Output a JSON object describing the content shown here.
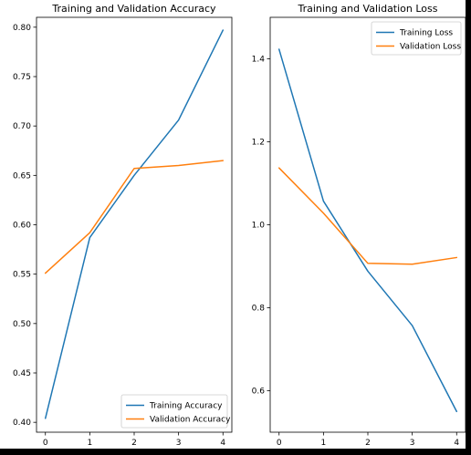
{
  "chart_data": [
    {
      "type": "line",
      "title": "Training and Validation Accuracy",
      "xlabel": "",
      "ylabel": "",
      "x": [
        0,
        1,
        2,
        3,
        4
      ],
      "xlim": [
        -0.2,
        4.2
      ],
      "ylim": [
        0.39,
        0.81
      ],
      "xticks": [
        "0",
        "1",
        "2",
        "3",
        "4"
      ],
      "yticks": [
        "0.40",
        "0.45",
        "0.50",
        "0.55",
        "0.60",
        "0.65",
        "0.70",
        "0.75",
        "0.80"
      ],
      "legend_position": "lower right",
      "grid": false,
      "series": [
        {
          "name": "Training Accuracy",
          "color": "#1f77b4",
          "values": [
            0.404,
            0.587,
            0.65,
            0.706,
            0.797
          ]
        },
        {
          "name": "Validation Accuracy",
          "color": "#ff7f0e",
          "values": [
            0.551,
            0.592,
            0.657,
            0.66,
            0.665
          ]
        }
      ]
    },
    {
      "type": "line",
      "title": "Training and Validation Loss",
      "xlabel": "",
      "ylabel": "",
      "x": [
        0,
        1,
        2,
        3,
        4
      ],
      "xlim": [
        -0.2,
        4.2
      ],
      "ylim": [
        0.5,
        1.5
      ],
      "xticks": [
        "0",
        "1",
        "2",
        "3",
        "4"
      ],
      "yticks": [
        "0.6",
        "0.8",
        "1.0",
        "1.2",
        "1.4"
      ],
      "legend_position": "upper right",
      "grid": false,
      "series": [
        {
          "name": "Training Loss",
          "color": "#1f77b4",
          "values": [
            1.423,
            1.057,
            0.888,
            0.757,
            0.55
          ]
        },
        {
          "name": "Validation Loss",
          "color": "#ff7f0e",
          "values": [
            1.137,
            1.028,
            0.907,
            0.905,
            0.921
          ]
        }
      ]
    }
  ]
}
